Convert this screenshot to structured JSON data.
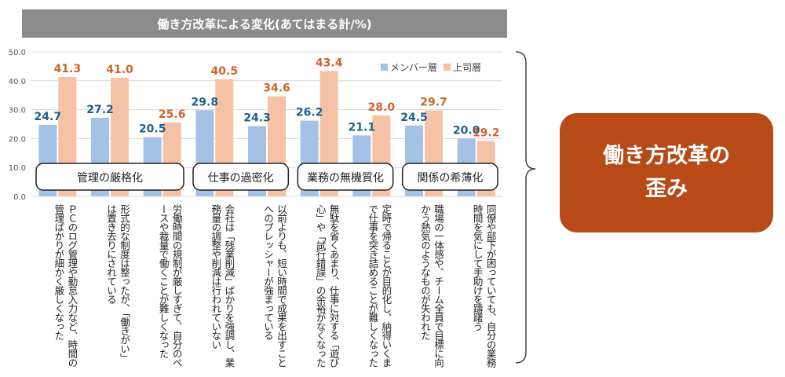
{
  "title": "働き方改革による変化(あてはまる計/%)",
  "callout": {
    "line1": "働き方改革の",
    "line2": "歪み"
  },
  "chart_data": {
    "type": "bar",
    "ylim": [
      0,
      50
    ],
    "yticks": [
      "0.0",
      "10.0",
      "20.0",
      "30.0",
      "40.0",
      "50.0"
    ],
    "grid": true,
    "legend_position": "top-right",
    "colors": {
      "member": "#a4c2e6",
      "boss": "#f6c2a6",
      "member_label": "#1f5f8b",
      "boss_label": "#d0632b"
    },
    "categories": [
      "ＰＣのログ管理や勤怠入力など、時間の管理ばかりが細かく厳しくなった",
      "形式的な制度は整ったが、「働きがい」は置き去りにされている",
      "労働時間の規制が厳しすぎて、自分のペースや裁量で働くことが難しくなった",
      "会社は「残業削減」ばかりを強調し、業務量の調整や削減は行われていない",
      "以前よりも、短い時間で成果を出すことへのプレッシャーが強まっている",
      "無駄を省くあまり、仕事に対する「遊び心」や「試行錯誤」の余裕がなくなった",
      "定時で帰ることが目的化し、納得いくまで仕事を突き詰めることが難しくなった",
      "職場の一体感や、チーム全員で目標に向かう熱気のようなものが失われた",
      "同僚や部下が困っていても、自分の業務時間を気にして手助けを躊躇う"
    ],
    "series": [
      {
        "name": "メンバー層",
        "values": [
          24.7,
          27.2,
          20.5,
          29.8,
          24.3,
          26.2,
          21.1,
          24.5,
          20.0
        ],
        "labels": [
          "24.7",
          "27.2",
          "20.5",
          "29.8",
          "24.3",
          "26.2",
          "21.1",
          "24.5",
          "20.0"
        ]
      },
      {
        "name": "上司層",
        "values": [
          41.3,
          41.0,
          25.6,
          40.5,
          34.6,
          43.4,
          28.0,
          29.7,
          19.2
        ],
        "labels": [
          "41.3",
          "41.0",
          "25.6",
          "40.5",
          "34.6",
          "43.4",
          "28.0",
          "29.7",
          "19.2"
        ]
      }
    ],
    "groups": [
      {
        "label": "管理の厳格化"
      },
      {
        "label": "仕事の過密化"
      },
      {
        "label": "業務の無機質化"
      },
      {
        "label": "関係の希薄化"
      }
    ]
  }
}
